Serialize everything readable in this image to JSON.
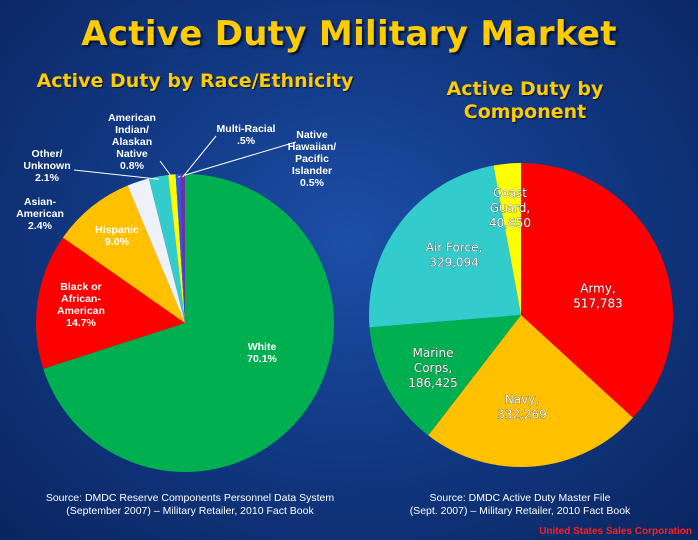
{
  "page": {
    "title": "Active Duty Military Market",
    "credit": "United States Sales Corporation"
  },
  "chart_data": [
    {
      "type": "pie",
      "title": "Active Duty by Race/Ethnicity",
      "slices": [
        {
          "label": [
            "White",
            "70.1%"
          ],
          "value": 70.1,
          "color": "#00b050"
        },
        {
          "label": [
            "Black or",
            "African-",
            "American",
            "14.7%"
          ],
          "value": 14.7,
          "color": "#ff0000"
        },
        {
          "label": [
            "Hispanic",
            "9.0%"
          ],
          "value": 9.0,
          "color": "#ffc000"
        },
        {
          "label": [
            "Asian-",
            "American",
            "2.4%"
          ],
          "value": 2.4,
          "color": "#eef2f8"
        },
        {
          "label": [
            "Other/",
            "Unknown",
            "2.1%"
          ],
          "value": 2.1,
          "color": "#33cccc"
        },
        {
          "label": [
            "American",
            "Indian/",
            "Alaskan",
            "Native",
            "0.8%"
          ],
          "value": 0.8,
          "color": "#ffff00"
        },
        {
          "label": [
            "Native",
            "Hawaiian/",
            "Pacific",
            "Islander",
            "0.5%"
          ],
          "value": 0.5,
          "color": "#3355ee"
        },
        {
          "label": [
            "Multi-Racial",
            ".5%"
          ],
          "value": 0.5,
          "color": "#7030a0"
        }
      ],
      "source": [
        "Source: DMDC Reserve Components Personnel Data System",
        "(September 2007) – Military Retailer, 2010 Fact Book"
      ]
    },
    {
      "type": "pie",
      "title": "Active Duty by Component",
      "slices": [
        {
          "label": [
            "Army,",
            "517,783"
          ],
          "value": 517783,
          "color": "#ff0000"
        },
        {
          "label": [
            "Navy,",
            "332,269"
          ],
          "value": 332269,
          "color": "#ffc000"
        },
        {
          "label": [
            "Marine",
            "Corps,",
            "186,425"
          ],
          "value": 186425,
          "color": "#00b050"
        },
        {
          "label": [
            "Air Force,",
            "329,094"
          ],
          "value": 329094,
          "color": "#33cccc"
        },
        {
          "label": [
            "Coast",
            "Guard,",
            "40,650"
          ],
          "value": 40650,
          "color": "#ffff00"
        }
      ],
      "source": [
        "Source: DMDC Active Duty Master File",
        "(Sept. 2007) – Military Retailer, 2010 Fact Book"
      ]
    }
  ]
}
